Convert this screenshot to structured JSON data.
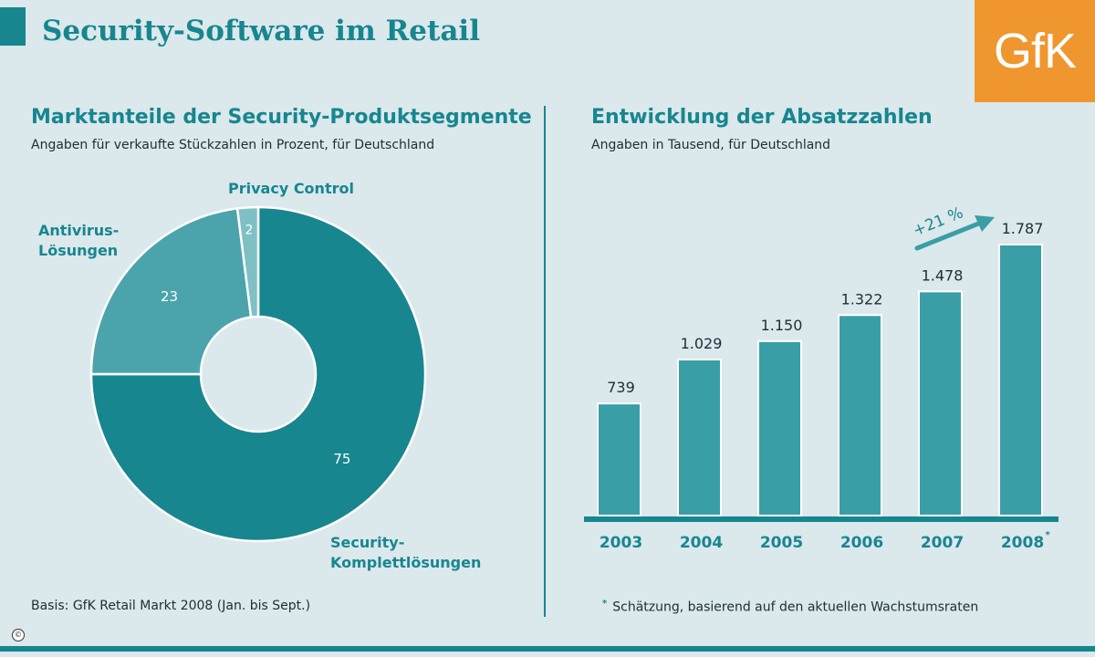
{
  "header": {
    "title": "Security-Software im Retail",
    "logo_text": "GfK"
  },
  "colors": {
    "accent": "#17868f",
    "background": "#dbe8ec",
    "logo": "#f0962e",
    "slice_main": "#17868f",
    "slice_secondary": "#4ba4ab",
    "slice_small": "#7fc0c5",
    "bar": "#3a9ea6"
  },
  "left_panel": {
    "title": "Marktanteile der Security-Produktsegmente",
    "subtitle": "Angaben für verkaufte Stückzahlen in Prozent, für Deutschland",
    "footnote": "Basis: GfK Retail Markt 2008 (Jan. bis Sept.)"
  },
  "right_panel": {
    "title": "Entwicklung der Absatzzahlen",
    "subtitle": "Angaben in Tausend, für Deutschland",
    "growth_label": "+21 %",
    "footnote": "Schätzung, basierend auf den aktuellen Wachstumsraten",
    "footnote_marker": "*"
  },
  "chart_data": [
    {
      "type": "pie",
      "title": "Marktanteile der Security-Produktsegmente",
      "donut": true,
      "slices": [
        {
          "label_lines": [
            "Security-",
            "Komplettlösungen"
          ],
          "value": 75
        },
        {
          "label_lines": [
            "Antivirus-",
            "Lösungen"
          ],
          "value": 23
        },
        {
          "label_lines": [
            "Privacy Control"
          ],
          "value": 2
        }
      ]
    },
    {
      "type": "bar",
      "title": "Entwicklung der Absatzzahlen",
      "categories": [
        "2003",
        "2004",
        "2005",
        "2006",
        "2007",
        "2008"
      ],
      "category_markers": [
        "",
        "",
        "",
        "",
        "",
        "*"
      ],
      "values": [
        739,
        1029,
        1150,
        1322,
        1478,
        1787
      ],
      "value_labels": [
        "739",
        "1.029",
        "1.150",
        "1.322",
        "1.478",
        "1.787"
      ],
      "ylim": [
        0,
        1787
      ],
      "grid": false
    }
  ]
}
